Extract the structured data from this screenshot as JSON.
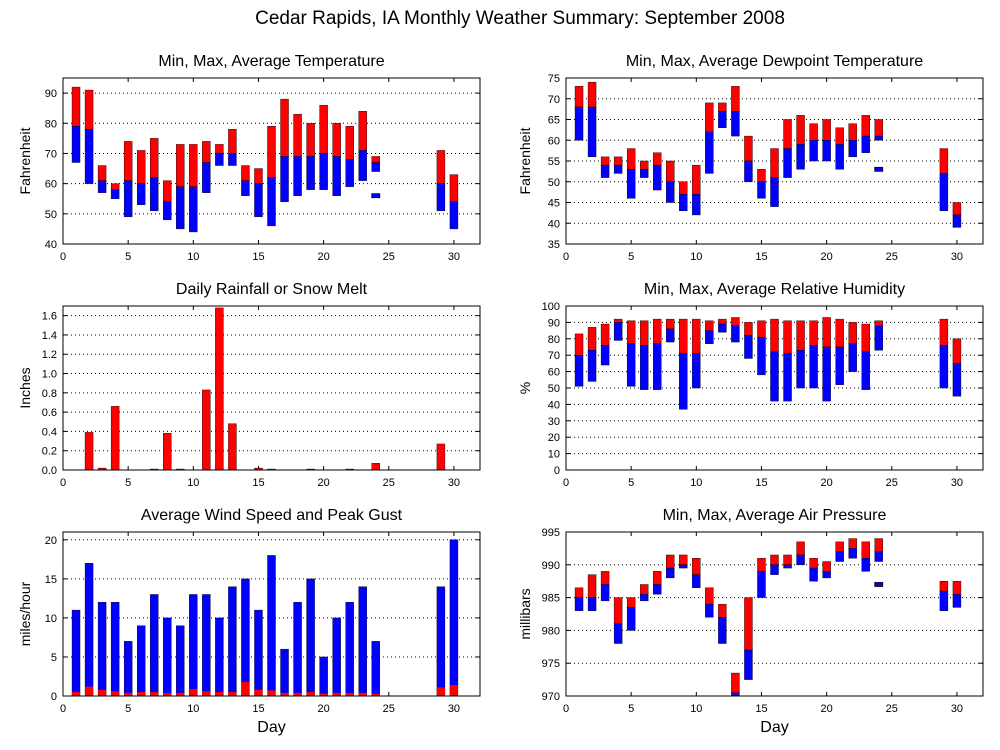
{
  "page_title": "Cedar Rapids, IA Monthly Weather Summary: September 2008",
  "colors": {
    "red": "#ff0000",
    "blue": "#0000ff",
    "black": "#000000",
    "grid": "#000000"
  },
  "chart_data": [
    {
      "id": "temp",
      "type": "bar",
      "title": "Min, Max, Average Temperature",
      "xlabel": "",
      "ylabel": "Fahrenheit",
      "xlim": [
        0,
        32
      ],
      "ylim": [
        40,
        95
      ],
      "yticks": [
        40,
        50,
        60,
        70,
        80,
        90
      ],
      "xticks": [
        0,
        5,
        10,
        15,
        20,
        25,
        30
      ],
      "days": [
        1,
        2,
        3,
        4,
        5,
        6,
        7,
        8,
        9,
        10,
        11,
        12,
        13,
        14,
        15,
        16,
        17,
        18,
        19,
        20,
        21,
        22,
        23,
        24,
        29,
        30
      ],
      "max": [
        92,
        91,
        66,
        60,
        74,
        71,
        75,
        61,
        73,
        73,
        74,
        73,
        78,
        66,
        65,
        79,
        88,
        83,
        80,
        86,
        80,
        79,
        84,
        69,
        71,
        63
      ],
      "avg": [
        79,
        78,
        61,
        58,
        61,
        60,
        62,
        54,
        59,
        59,
        67,
        70,
        70,
        61,
        60,
        62,
        69,
        69,
        69,
        70,
        69,
        68,
        71,
        67,
        60,
        54
      ],
      "min": [
        67,
        60,
        57,
        55,
        49,
        53,
        51,
        48,
        45,
        44,
        57,
        66,
        66,
        56,
        49,
        46,
        54,
        56,
        58,
        58,
        56,
        59,
        61,
        64,
        51,
        45
      ],
      "single_days": [
        24
      ],
      "single_values": [
        56
      ]
    },
    {
      "id": "dew",
      "type": "bar",
      "title": "Min, Max, Average Dewpoint Temperature",
      "xlabel": "",
      "ylabel": "Fahrenheit",
      "xlim": [
        0,
        32
      ],
      "ylim": [
        35,
        75
      ],
      "yticks": [
        35,
        40,
        45,
        50,
        55,
        60,
        65,
        70,
        75
      ],
      "xticks": [
        0,
        5,
        10,
        15,
        20,
        25,
        30
      ],
      "days": [
        1,
        2,
        3,
        4,
        5,
        6,
        7,
        8,
        9,
        10,
        11,
        12,
        13,
        14,
        15,
        16,
        17,
        18,
        19,
        20,
        21,
        22,
        23,
        24,
        29,
        30
      ],
      "max": [
        73,
        74,
        56,
        56,
        58,
        55,
        57,
        55,
        50,
        54,
        69,
        69,
        73,
        61,
        53,
        58,
        65,
        66,
        64,
        65,
        63,
        64,
        66,
        65,
        58,
        45
      ],
      "avg": [
        68,
        68,
        54,
        54,
        53,
        53,
        54,
        50,
        47,
        47,
        62,
        67,
        67,
        55,
        50,
        51,
        58,
        59,
        60,
        60,
        59,
        60,
        61,
        61,
        52,
        42
      ],
      "min": [
        60,
        56,
        51,
        52,
        46,
        51,
        48,
        45,
        43,
        42,
        52,
        63,
        61,
        50,
        46,
        44,
        51,
        53,
        55,
        55,
        53,
        56,
        57,
        60,
        43,
        39
      ],
      "single_days": [
        24
      ],
      "single_values": [
        53
      ]
    },
    {
      "id": "rain",
      "type": "bar",
      "title": "Daily Rainfall or Snow Melt",
      "xlabel": "",
      "ylabel": "Inches",
      "xlim": [
        0,
        32
      ],
      "ylim": [
        0,
        1.7
      ],
      "yticks": [
        0,
        0.2,
        0.4,
        0.6,
        0.8,
        1.0,
        1.2,
        1.4,
        1.6
      ],
      "ytick_labels": [
        "0.0",
        "0.2",
        "0.4",
        "0.6",
        "0.8",
        "1.0",
        "1.2",
        "1.4",
        "1.6"
      ],
      "xticks": [
        0,
        5,
        10,
        15,
        20,
        25,
        30
      ],
      "days": [
        2,
        3,
        4,
        7,
        8,
        9,
        11,
        12,
        13,
        15,
        16,
        19,
        22,
        24,
        29
      ],
      "values": [
        0.39,
        0.02,
        0.66,
        0.01,
        0.38,
        0.01,
        0.83,
        1.68,
        0.48,
        0.02,
        0.01,
        0.01,
        0.01,
        0.07,
        0.27
      ]
    },
    {
      "id": "rh",
      "type": "bar",
      "title": "Min, Max, Average Relative Humidity",
      "xlabel": "",
      "ylabel": "%",
      "xlim": [
        0,
        32
      ],
      "ylim": [
        0,
        100
      ],
      "yticks": [
        0,
        10,
        20,
        30,
        40,
        50,
        60,
        70,
        80,
        90,
        100
      ],
      "xticks": [
        0,
        5,
        10,
        15,
        20,
        25,
        30
      ],
      "days": [
        1,
        2,
        3,
        4,
        5,
        6,
        7,
        8,
        9,
        10,
        11,
        12,
        13,
        14,
        15,
        16,
        17,
        18,
        19,
        20,
        21,
        22,
        23,
        24,
        29,
        30
      ],
      "max": [
        83,
        87,
        89,
        92,
        91,
        91,
        92,
        92,
        92,
        92,
        91,
        92,
        93,
        90,
        91,
        92,
        91,
        91,
        91,
        93,
        92,
        90,
        89,
        91,
        92,
        80
      ],
      "avg": [
        70,
        73,
        76,
        90,
        77,
        76,
        77,
        86,
        71,
        71,
        85,
        89,
        88,
        82,
        81,
        72,
        71,
        73,
        76,
        75,
        75,
        77,
        72,
        88,
        76,
        65
      ],
      "min": [
        51,
        54,
        64,
        79,
        51,
        49,
        49,
        78,
        37,
        50,
        77,
        84,
        78,
        68,
        58,
        42,
        42,
        50,
        50,
        42,
        52,
        60,
        49,
        73,
        50,
        45
      ]
    },
    {
      "id": "wind",
      "type": "bar",
      "title": "Average Wind Speed and Peak Gust",
      "xlabel": "Day",
      "ylabel": "miles/hour",
      "xlim": [
        0,
        32
      ],
      "ylim": [
        0,
        21
      ],
      "yticks": [
        0,
        5,
        10,
        15,
        20
      ],
      "xticks": [
        0,
        5,
        10,
        15,
        20,
        25,
        30
      ],
      "days": [
        1,
        2,
        3,
        4,
        5,
        6,
        7,
        8,
        9,
        10,
        11,
        12,
        13,
        14,
        15,
        16,
        17,
        18,
        19,
        20,
        21,
        22,
        23,
        24,
        29,
        30
      ],
      "gust": [
        11,
        17,
        12,
        12,
        7,
        9,
        13,
        10,
        9,
        13,
        13,
        10,
        14,
        15,
        11,
        18,
        6,
        12,
        15,
        5,
        10,
        12,
        14,
        7,
        14,
        20
      ],
      "avg": [
        0.5,
        1.2,
        0.8,
        0.6,
        0.4,
        0.5,
        0.5,
        0.4,
        0.4,
        0.9,
        0.6,
        0.5,
        0.5,
        1.8,
        0.8,
        0.7,
        0.4,
        0.4,
        0.5,
        0.3,
        0.4,
        0.4,
        0.4,
        0.3,
        1.1,
        1.4
      ]
    },
    {
      "id": "press",
      "type": "bar",
      "title": "Min, Max, Average Air Pressure",
      "xlabel": "Day",
      "ylabel": "millibars",
      "xlim": [
        0,
        32
      ],
      "ylim": [
        970,
        995
      ],
      "yticks": [
        970,
        975,
        980,
        985,
        990,
        995
      ],
      "xticks": [
        0,
        5,
        10,
        15,
        20,
        25,
        30
      ],
      "days": [
        1,
        2,
        3,
        4,
        5,
        6,
        7,
        8,
        9,
        10,
        11,
        12,
        13,
        14,
        15,
        16,
        17,
        18,
        19,
        20,
        21,
        22,
        23,
        24,
        29,
        30
      ],
      "max": [
        986.5,
        988.5,
        989.0,
        985.0,
        985.0,
        987.0,
        989.0,
        991.5,
        991.5,
        991.0,
        986.5,
        984.0,
        973.5,
        985.0,
        991.0,
        991.5,
        991.5,
        993.5,
        991.0,
        990.5,
        993.5,
        994.0,
        993.5,
        994.0,
        987.5,
        987.5
      ],
      "avg": [
        985.0,
        985.0,
        987.0,
        981.0,
        983.5,
        985.5,
        987.0,
        989.5,
        990.0,
        988.5,
        984.0,
        982.0,
        970.5,
        977.0,
        989.0,
        990.0,
        990.0,
        991.5,
        989.5,
        989.0,
        992.0,
        992.5,
        991.0,
        992.0,
        986.0,
        985.5
      ],
      "min": [
        983.0,
        983.0,
        984.5,
        978.0,
        980.0,
        984.5,
        985.5,
        988.0,
        989.5,
        986.5,
        982.0,
        978.0,
        970.0,
        972.5,
        985.0,
        988.5,
        989.5,
        990.0,
        987.5,
        988.0,
        990.5,
        991.0,
        989.0,
        990.5,
        983.0,
        983.5
      ],
      "single_days": [
        24
      ],
      "single_values": [
        987.0
      ]
    }
  ]
}
